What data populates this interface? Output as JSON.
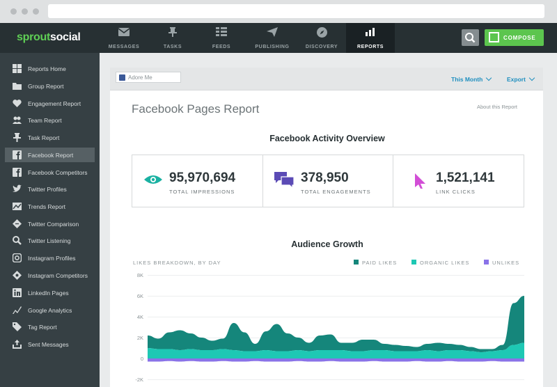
{
  "app": {
    "logo_part1": "sprout",
    "logo_part2": "social"
  },
  "nav": {
    "items": [
      {
        "label": "MESSAGES",
        "icon": "envelope-icon"
      },
      {
        "label": "TASKS",
        "icon": "pin-icon"
      },
      {
        "label": "FEEDS",
        "icon": "list-icon"
      },
      {
        "label": "PUBLISHING",
        "icon": "paper-plane-icon"
      },
      {
        "label": "DISCOVERY",
        "icon": "compass-icon"
      },
      {
        "label": "REPORTS",
        "icon": "bar-chart-icon",
        "active": true
      }
    ],
    "compose_label": "COMPOSE"
  },
  "sidebar": {
    "items": [
      {
        "label": "Reports Home",
        "icon": "grid-icon"
      },
      {
        "label": "Group Report",
        "icon": "folder-icon"
      },
      {
        "label": "Engagement Report",
        "icon": "heart-icon"
      },
      {
        "label": "Team Report",
        "icon": "team-icon"
      },
      {
        "label": "Task Report",
        "icon": "pin-icon"
      },
      {
        "label": "Facebook Report",
        "icon": "facebook-icon",
        "active": true
      },
      {
        "label": "Facebook Competitors",
        "icon": "facebook-compare-icon"
      },
      {
        "label": "Twitter Profiles",
        "icon": "twitter-icon"
      },
      {
        "label": "Trends Report",
        "icon": "trend-icon"
      },
      {
        "label": "Twitter Comparison",
        "icon": "twitter-compare-icon"
      },
      {
        "label": "Twitter Listening",
        "icon": "listening-icon"
      },
      {
        "label": "Instagram Profiles",
        "icon": "instagram-icon"
      },
      {
        "label": "Instagram Competitors",
        "icon": "instagram-compare-icon"
      },
      {
        "label": "LinkedIn Pages",
        "icon": "linkedin-icon"
      },
      {
        "label": "Google Analytics",
        "icon": "analytics-icon"
      },
      {
        "label": "Tag Report",
        "icon": "tag-icon"
      },
      {
        "label": "Sent Messages",
        "icon": "sent-icon"
      }
    ]
  },
  "header": {
    "page_selector": "Adore Me",
    "date_range": "This Month",
    "export_label": "Export"
  },
  "report": {
    "title": "Facebook Pages Report",
    "about_link": "About this Report",
    "overview_title": "Facebook Activity Overview",
    "stats": [
      {
        "value": "95,970,694",
        "label": "TOTAL IMPRESSIONS",
        "icon": "eye-icon",
        "color": "#1ab1a2"
      },
      {
        "value": "378,950",
        "label": "TOTAL ENGAGEMENTS",
        "icon": "chat-bubbles-icon",
        "color": "#5b4bb5"
      },
      {
        "value": "1,521,141",
        "label": "LINK CLICKS",
        "icon": "cursor-icon",
        "color": "#d24ed6"
      }
    ],
    "growth_title": "Audience Growth"
  },
  "chart_data": {
    "type": "area",
    "title": "Audience Growth",
    "subtitle": "LIKES BREAKDOWN, BY DAY",
    "ylim": [
      -2000,
      8000
    ],
    "yticks": [
      "8K",
      "6K",
      "4K",
      "2K",
      "0",
      "-2K"
    ],
    "legend_position": "top-right",
    "series": [
      {
        "name": "PAID LIKES",
        "color": "#15867b",
        "values": [
          1200,
          1000,
          1600,
          1900,
          1500,
          1200,
          900,
          1000,
          2600,
          1800,
          700,
          1800,
          2600,
          1700,
          1200,
          800,
          1400,
          1500,
          700,
          800,
          1100,
          1000,
          600,
          600,
          500,
          400,
          600,
          800,
          600,
          500,
          400,
          300,
          200,
          500,
          4000,
          4500
        ]
      },
      {
        "name": "ORGANIC LIKES",
        "color": "#1ec8b4",
        "values": [
          1000,
          900,
          900,
          800,
          900,
          800,
          800,
          900,
          800,
          700,
          700,
          800,
          700,
          700,
          800,
          700,
          800,
          800,
          800,
          700,
          700,
          800,
          800,
          700,
          700,
          700,
          800,
          700,
          800,
          800,
          700,
          600,
          700,
          800,
          1300,
          1500
        ]
      },
      {
        "name": "UNLIKES",
        "color": "#8a73e8",
        "values": [
          -300,
          -300,
          -250,
          -300,
          -250,
          -300,
          -300,
          -250,
          -300,
          -300,
          -250,
          -300,
          -300,
          -300,
          -250,
          -300,
          -300,
          -250,
          -300,
          -300,
          -300,
          -250,
          -300,
          -300,
          -300,
          -250,
          -300,
          -300,
          -250,
          -300,
          -300,
          -300,
          -250,
          -300,
          -300,
          -300
        ]
      }
    ]
  }
}
